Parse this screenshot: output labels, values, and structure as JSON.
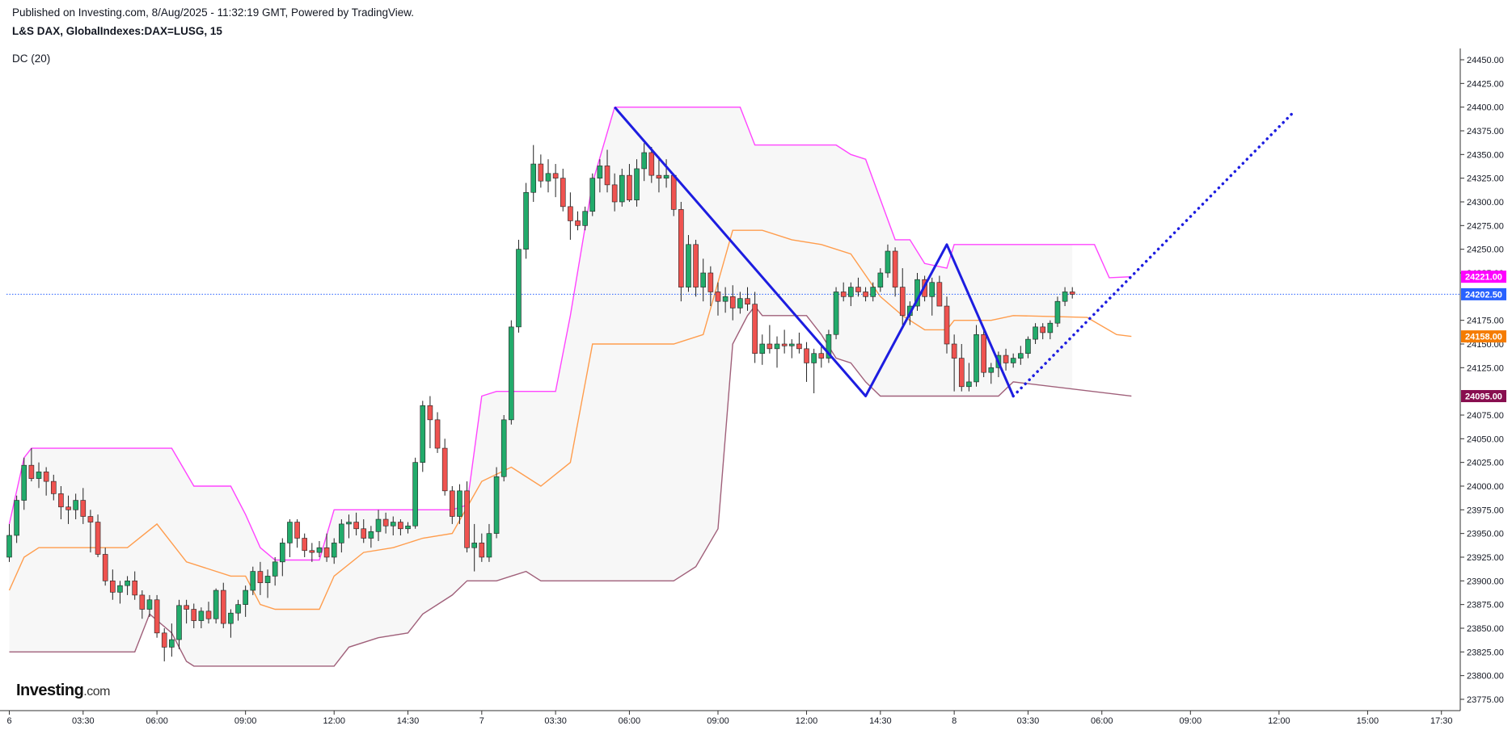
{
  "header": {
    "published": "Published on Investing.com, 8/Aug/2025 - 11:32:19 GMT, Powered by TradingView.",
    "symbol": "L&S DAX, GlobalIndexes:DAX=LUSG, 15",
    "indicator": "DC (20)"
  },
  "logo": {
    "main": "Investing",
    "suffix": ".com"
  },
  "colors": {
    "up": "#22ab6b",
    "down": "#ef5350",
    "upper_band": "#ff44ff",
    "middle_band": "#ff9d4d",
    "lower_band": "#a0607a",
    "band_fill": "#f7f7f7",
    "zigzag": "#1d1de0",
    "last_price_line": "#2962ff"
  },
  "chart_data": {
    "type": "candlestick",
    "y_axis": {
      "min": 23775,
      "max": 24450,
      "ticks": [
        "24450.00",
        "24425.00",
        "24400.00",
        "24375.00",
        "24350.00",
        "24325.00",
        "24300.00",
        "24275.00",
        "24250.00",
        "24225.00",
        "24175.00",
        "24150.00",
        "24125.00",
        "24075.00",
        "24050.00",
        "24025.00",
        "24000.00",
        "23975.00",
        "23950.00",
        "23925.00",
        "23900.00",
        "23875.00",
        "23850.00",
        "23825.00",
        "23800.00",
        "23775.00"
      ]
    },
    "x_axis": {
      "labels": [
        {
          "i": 0,
          "text": "6"
        },
        {
          "i": 10,
          "text": "03:30"
        },
        {
          "i": 20,
          "text": "06:00"
        },
        {
          "i": 32,
          "text": "09:00"
        },
        {
          "i": 44,
          "text": "12:00"
        },
        {
          "i": 54,
          "text": "14:30"
        },
        {
          "i": 64,
          "text": "7"
        },
        {
          "i": 74,
          "text": "03:30"
        },
        {
          "i": 84,
          "text": "06:00"
        },
        {
          "i": 96,
          "text": "09:00"
        },
        {
          "i": 108,
          "text": "12:00"
        },
        {
          "i": 118,
          "text": "14:30"
        },
        {
          "i": 128,
          "text": "8"
        },
        {
          "i": 138,
          "text": "03:30"
        },
        {
          "i": 148,
          "text": "06:00"
        },
        {
          "i": 160,
          "text": "09:00"
        },
        {
          "i": 172,
          "text": "12:00"
        },
        {
          "i": 184,
          "text": "15:00"
        },
        {
          "i": 194,
          "text": "17:30"
        }
      ]
    },
    "price_tags": [
      {
        "label": "24221.00",
        "value": 24221,
        "color": "#ff00ff"
      },
      {
        "label": "24202.50",
        "value": 24202.5,
        "color": "#2962ff"
      },
      {
        "label": "24158.00",
        "value": 24158,
        "color": "#f57c00"
      },
      {
        "label": "24095.00",
        "value": 24095,
        "color": "#880e4f"
      }
    ],
    "last_price": 24202.5,
    "candles": [
      [
        23925,
        23960,
        23920,
        23948
      ],
      [
        23948,
        23990,
        23940,
        23985
      ],
      [
        23985,
        24030,
        23975,
        24022
      ],
      [
        24022,
        24040,
        24005,
        24008
      ],
      [
        24008,
        24025,
        23998,
        24015
      ],
      [
        24015,
        24020,
        23990,
        24005
      ],
      [
        24005,
        24012,
        23985,
        23992
      ],
      [
        23992,
        24000,
        23965,
        23978
      ],
      [
        23978,
        23990,
        23960,
        23975
      ],
      [
        23975,
        23992,
        23965,
        23985
      ],
      [
        23985,
        23998,
        23960,
        23968
      ],
      [
        23968,
        23975,
        23930,
        23962
      ],
      [
        23962,
        23970,
        23925,
        23928
      ],
      [
        23928,
        23935,
        23895,
        23900
      ],
      [
        23900,
        23912,
        23880,
        23888
      ],
      [
        23888,
        23900,
        23876,
        23895
      ],
      [
        23895,
        23905,
        23885,
        23900
      ],
      [
        23900,
        23910,
        23880,
        23885
      ],
      [
        23885,
        23890,
        23860,
        23870
      ],
      [
        23870,
        23885,
        23862,
        23880
      ],
      [
        23880,
        23885,
        23840,
        23845
      ],
      [
        23845,
        23850,
        23815,
        23830
      ],
      [
        23830,
        23855,
        23820,
        23838
      ],
      [
        23838,
        23880,
        23828,
        23874
      ],
      [
        23874,
        23880,
        23855,
        23870
      ],
      [
        23870,
        23876,
        23850,
        23858
      ],
      [
        23858,
        23872,
        23850,
        23868
      ],
      [
        23868,
        23878,
        23855,
        23860
      ],
      [
        23860,
        23892,
        23855,
        23890
      ],
      [
        23890,
        23898,
        23850,
        23855
      ],
      [
        23855,
        23870,
        23840,
        23866
      ],
      [
        23866,
        23880,
        23858,
        23875
      ],
      [
        23875,
        23895,
        23862,
        23890
      ],
      [
        23890,
        23915,
        23885,
        23910
      ],
      [
        23910,
        23920,
        23885,
        23898
      ],
      [
        23898,
        23912,
        23882,
        23905
      ],
      [
        23905,
        23925,
        23895,
        23920
      ],
      [
        23920,
        23945,
        23905,
        23940
      ],
      [
        23940,
        23965,
        23925,
        23962
      ],
      [
        23962,
        23965,
        23935,
        23945
      ],
      [
        23945,
        23950,
        23925,
        23932
      ],
      [
        23932,
        23940,
        23920,
        23930
      ],
      [
        23930,
        23942,
        23925,
        23935
      ],
      [
        23935,
        23950,
        23920,
        23925
      ],
      [
        23925,
        23945,
        23918,
        23940
      ],
      [
        23940,
        23965,
        23930,
        23960
      ],
      [
        23960,
        23970,
        23945,
        23962
      ],
      [
        23962,
        23972,
        23948,
        23955
      ],
      [
        23955,
        23965,
        23940,
        23945
      ],
      [
        23945,
        23958,
        23935,
        23952
      ],
      [
        23952,
        23975,
        23942,
        23965
      ],
      [
        23965,
        23972,
        23950,
        23958
      ],
      [
        23958,
        23968,
        23948,
        23962
      ],
      [
        23962,
        23965,
        23948,
        23955
      ],
      [
        23955,
        23962,
        23950,
        23958
      ],
      [
        23958,
        24030,
        23955,
        24025
      ],
      [
        24025,
        24090,
        24015,
        24085
      ],
      [
        24085,
        24095,
        24040,
        24070
      ],
      [
        24070,
        24078,
        24035,
        24040
      ],
      [
        24040,
        24050,
        23990,
        23995
      ],
      [
        23995,
        24000,
        23960,
        23968
      ],
      [
        23968,
        24002,
        23960,
        23995
      ],
      [
        23995,
        24005,
        23930,
        23935
      ],
      [
        23935,
        23960,
        23910,
        23940
      ],
      [
        23940,
        23950,
        23920,
        23925
      ],
      [
        23925,
        23960,
        23920,
        23950
      ],
      [
        23950,
        24020,
        23945,
        24010
      ],
      [
        24010,
        24075,
        24005,
        24070
      ],
      [
        24070,
        24175,
        24065,
        24168
      ],
      [
        24168,
        24260,
        24162,
        24250
      ],
      [
        24250,
        24320,
        24240,
        24310
      ],
      [
        24310,
        24360,
        24300,
        24340
      ],
      [
        24340,
        24350,
        24315,
        24322
      ],
      [
        24322,
        24345,
        24310,
        24330
      ],
      [
        24330,
        24340,
        24305,
        24325
      ],
      [
        24325,
        24335,
        24290,
        24295
      ],
      [
        24295,
        24310,
        24260,
        24280
      ],
      [
        24280,
        24290,
        24270,
        24275
      ],
      [
        24275,
        24295,
        24270,
        24290
      ],
      [
        24290,
        24330,
        24285,
        24325
      ],
      [
        24325,
        24345,
        24310,
        24338
      ],
      [
        24338,
        24355,
        24310,
        24318
      ],
      [
        24318,
        24330,
        24290,
        24300
      ],
      [
        24300,
        24335,
        24295,
        24328
      ],
      [
        24328,
        24340,
        24300,
        24302
      ],
      [
        24302,
        24345,
        24295,
        24335
      ],
      [
        24335,
        24362,
        24322,
        24352
      ],
      [
        24352,
        24358,
        24320,
        24328
      ],
      [
        24328,
        24348,
        24310,
        24325
      ],
      [
        24325,
        24345,
        24315,
        24328
      ],
      [
        24328,
        24330,
        24285,
        24292
      ],
      [
        24292,
        24300,
        24195,
        24210
      ],
      [
        24210,
        24265,
        24205,
        24255
      ],
      [
        24255,
        24260,
        24200,
        24210
      ],
      [
        24210,
        24240,
        24195,
        24225
      ],
      [
        24225,
        24232,
        24190,
        24205
      ],
      [
        24205,
        24215,
        24180,
        24195
      ],
      [
        24195,
        24210,
        24183,
        24200
      ],
      [
        24200,
        24212,
        24175,
        24188
      ],
      [
        24188,
        24205,
        24182,
        24198
      ],
      [
        24198,
        24210,
        24185,
        24192
      ],
      [
        24192,
        24205,
        24130,
        24140
      ],
      [
        24140,
        24160,
        24128,
        24150
      ],
      [
        24150,
        24170,
        24140,
        24145
      ],
      [
        24145,
        24158,
        24125,
        24150
      ],
      [
        24150,
        24165,
        24140,
        24148
      ],
      [
        24148,
        24155,
        24135,
        24150
      ],
      [
        24150,
        24162,
        24140,
        24145
      ],
      [
        24145,
        24152,
        24110,
        24130
      ],
      [
        24130,
        24145,
        24098,
        24140
      ],
      [
        24140,
        24148,
        24125,
        24135
      ],
      [
        24135,
        24165,
        24130,
        24160
      ],
      [
        24160,
        24210,
        24155,
        24205
      ],
      [
        24205,
        24215,
        24195,
        24200
      ],
      [
        24200,
        24215,
        24190,
        24210
      ],
      [
        24210,
        24220,
        24200,
        24205
      ],
      [
        24205,
        24210,
        24195,
        24200
      ],
      [
        24200,
        24215,
        24195,
        24210
      ],
      [
        24210,
        24230,
        24205,
        24225
      ],
      [
        24225,
        24255,
        24220,
        24248
      ],
      [
        24248,
        24252,
        24200,
        24210
      ],
      [
        24210,
        24230,
        24170,
        24180
      ],
      [
        24180,
        24195,
        24170,
        24190
      ],
      [
        24190,
        24225,
        24185,
        24218
      ],
      [
        24218,
        24222,
        24195,
        24200
      ],
      [
        24200,
        24220,
        24180,
        24215
      ],
      [
        24215,
        24222,
        24190,
        24190
      ],
      [
        24190,
        24200,
        24140,
        24150
      ],
      [
        24150,
        24160,
        24100,
        24135
      ],
      [
        24135,
        24150,
        24100,
        24105
      ],
      [
        24105,
        24130,
        24100,
        24110
      ],
      [
        24110,
        24170,
        24105,
        24160
      ],
      [
        24160,
        24168,
        24115,
        24120
      ],
      [
        24120,
        24130,
        24108,
        24125
      ],
      [
        24125,
        24142,
        24115,
        24138
      ],
      [
        24138,
        24145,
        24122,
        24130
      ],
      [
        24130,
        24140,
        24125,
        24135
      ],
      [
        24135,
        24148,
        24128,
        24140
      ],
      [
        24140,
        24158,
        24135,
        24155
      ],
      [
        24155,
        24172,
        24150,
        24168
      ],
      [
        24168,
        24172,
        24155,
        24162
      ],
      [
        24162,
        24175,
        24155,
        24172
      ],
      [
        24172,
        24200,
        24168,
        24195
      ],
      [
        24195,
        24210,
        24190,
        24205
      ],
      [
        24205,
        24210,
        24198,
        24202.5
      ]
    ],
    "donchian": {
      "upper": [
        [
          0,
          23960
        ],
        [
          2,
          24030
        ],
        [
          3,
          24040
        ],
        [
          22,
          24040
        ],
        [
          25,
          24000
        ],
        [
          30,
          24000
        ],
        [
          32,
          23970
        ],
        [
          34,
          23935
        ],
        [
          36,
          23922
        ],
        [
          42,
          23922
        ],
        [
          44,
          23975
        ],
        [
          60,
          23975
        ],
        [
          62,
          23980
        ],
        [
          64,
          24095
        ],
        [
          66,
          24100
        ],
        [
          74,
          24100
        ],
        [
          76,
          24180
        ],
        [
          79,
          24320
        ],
        [
          82,
          24400
        ],
        [
          99,
          24400
        ],
        [
          101,
          24360
        ],
        [
          112,
          24360
        ],
        [
          114,
          24350
        ],
        [
          116,
          24345
        ],
        [
          120,
          24260
        ],
        [
          122,
          24260
        ],
        [
          124,
          24235
        ],
        [
          127,
          24230
        ],
        [
          128,
          24255
        ],
        [
          147,
          24255
        ],
        [
          149,
          24220
        ],
        [
          152,
          24221
        ]
      ],
      "middle": [
        [
          0,
          23890
        ],
        [
          2,
          23925
        ],
        [
          4,
          23935
        ],
        [
          16,
          23935
        ],
        [
          20,
          23960
        ],
        [
          24,
          23920
        ],
        [
          30,
          23905
        ],
        [
          32,
          23905
        ],
        [
          34,
          23875
        ],
        [
          36,
          23870
        ],
        [
          42,
          23870
        ],
        [
          44,
          23905
        ],
        [
          48,
          23930
        ],
        [
          52,
          23935
        ],
        [
          56,
          23945
        ],
        [
          60,
          23950
        ],
        [
          64,
          24005
        ],
        [
          68,
          24020
        ],
        [
          72,
          24000
        ],
        [
          76,
          24025
        ],
        [
          79,
          24150
        ],
        [
          82,
          24150
        ],
        [
          90,
          24150
        ],
        [
          94,
          24160
        ],
        [
          96,
          24215
        ],
        [
          98,
          24270
        ],
        [
          102,
          24270
        ],
        [
          106,
          24260
        ],
        [
          110,
          24255
        ],
        [
          114,
          24245
        ],
        [
          118,
          24200
        ],
        [
          121,
          24180
        ],
        [
          124,
          24165
        ],
        [
          127,
          24165
        ],
        [
          128,
          24175
        ],
        [
          133,
          24175
        ],
        [
          136,
          24180
        ],
        [
          146,
          24178
        ],
        [
          150,
          24160
        ],
        [
          152,
          24158
        ]
      ],
      "lower": [
        [
          0,
          23825
        ],
        [
          17,
          23825
        ],
        [
          19,
          23865
        ],
        [
          22,
          23845
        ],
        [
          24,
          23815
        ],
        [
          25,
          23810
        ],
        [
          44,
          23810
        ],
        [
          46,
          23830
        ],
        [
          50,
          23840
        ],
        [
          54,
          23845
        ],
        [
          56,
          23865
        ],
        [
          60,
          23885
        ],
        [
          62,
          23900
        ],
        [
          66,
          23900
        ],
        [
          70,
          23910
        ],
        [
          72,
          23900
        ],
        [
          90,
          23900
        ],
        [
          93,
          23915
        ],
        [
          96,
          23955
        ],
        [
          98,
          24150
        ],
        [
          100,
          24180
        ],
        [
          101,
          24190
        ],
        [
          102,
          24180
        ],
        [
          108,
          24180
        ],
        [
          110,
          24160
        ],
        [
          112,
          24135
        ],
        [
          114,
          24130
        ],
        [
          116,
          24110
        ],
        [
          118,
          24095
        ],
        [
          126,
          24095
        ],
        [
          134,
          24095
        ],
        [
          136,
          24110
        ],
        [
          152,
          24095
        ]
      ]
    },
    "zigzag": [
      [
        82,
        24400
      ],
      [
        116,
        24095
      ],
      [
        127,
        24255
      ],
      [
        136,
        24095
      ]
    ],
    "projection": [
      [
        136,
        24095
      ],
      [
        174,
        24395
      ]
    ]
  }
}
